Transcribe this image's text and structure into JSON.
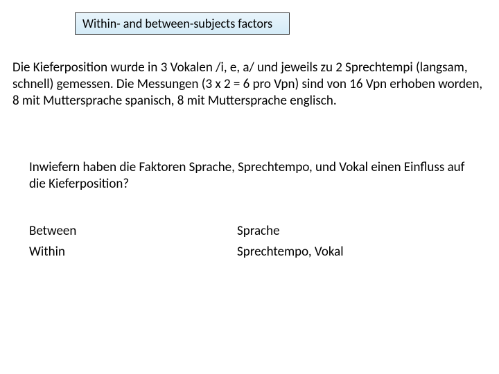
{
  "title": "Within- and between-subjects factors",
  "paragraph_main": "Die Kieferposition wurde in 3 Vokalen /i, e, a/ und jeweils zu 2 Sprechtempi (langsam, schnell) gemessen. Die Messungen (3 x 2 = 6 pro Vpn) sind von 16 Vpn erhoben worden, 8 mit Muttersprache spanisch, 8 mit Muttersprache englisch.",
  "paragraph_sub": "Inwiefern haben die Faktoren Sprache, Sprechtempo, und Vokal einen Einfluss auf die Kieferposition?",
  "rows": [
    {
      "left": "Between",
      "right": "Sprache"
    },
    {
      "left": "Within",
      "right": "Sprechtempo, Vokal"
    }
  ],
  "colors": {
    "background": "#ffffff",
    "text": "#000000",
    "title_box_border": "#333333",
    "title_box_bg_top": "#e8f4fb",
    "title_box_bg_bottom": "#d4ebf7"
  },
  "typography": {
    "title_fontsize": 18,
    "body_fontsize": 19,
    "font_family": "Calibri"
  }
}
